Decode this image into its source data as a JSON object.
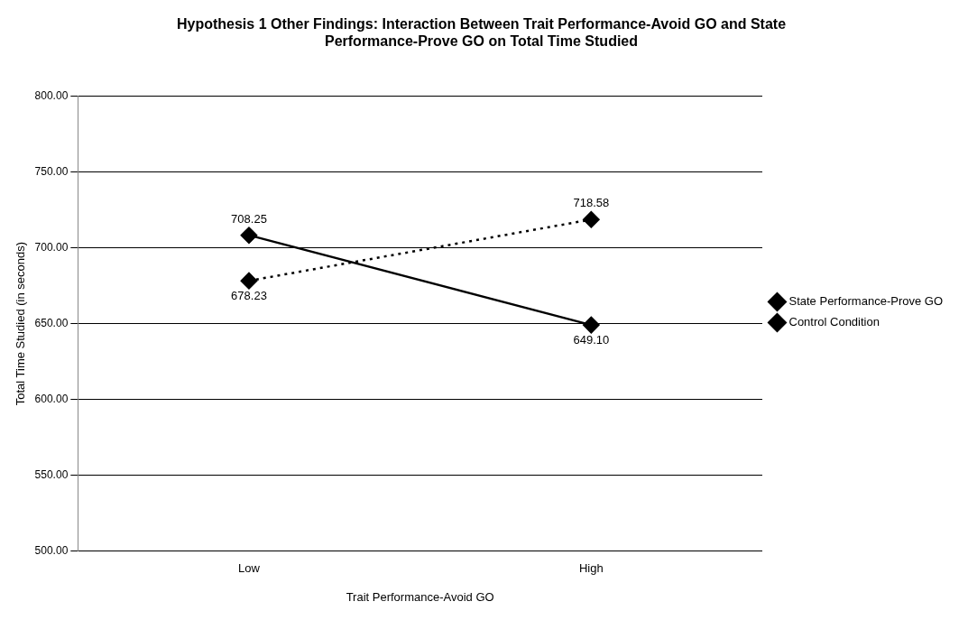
{
  "chart_data": {
    "type": "line",
    "title": [
      "Hypothesis 1 Other Findings: Interaction Between Trait Performance-Avoid GO and State",
      "Performance-Prove GO on Total Time Studied"
    ],
    "xlabel": "Trait Performance-Avoid GO",
    "ylabel": "Total Time Studied (in seconds)",
    "categories": [
      "Low",
      "High"
    ],
    "series": [
      {
        "name": "State Performance-Prove GO",
        "color": "#000000",
        "values": [
          708.25,
          649.1
        ],
        "value_labels": [
          "708.25",
          "649.10"
        ],
        "line_style": "solid"
      },
      {
        "name": "Control Condition",
        "color": "#000000",
        "values": [
          678.23,
          718.58
        ],
        "value_labels": [
          "678.23",
          "718.58"
        ],
        "line_style": "dotted"
      }
    ],
    "ylim": [
      500,
      800
    ],
    "yticks": [
      {
        "value": 500,
        "label": "500.00"
      },
      {
        "value": 550,
        "label": "550.00"
      },
      {
        "value": 600,
        "label": "600.00"
      },
      {
        "value": 650,
        "label": "650.00"
      },
      {
        "value": 700,
        "label": "700.00"
      },
      {
        "value": 750,
        "label": "750.00"
      },
      {
        "value": 800,
        "label": "800.00"
      }
    ],
    "grid": "y",
    "legend": "right",
    "marker": "diamond"
  }
}
